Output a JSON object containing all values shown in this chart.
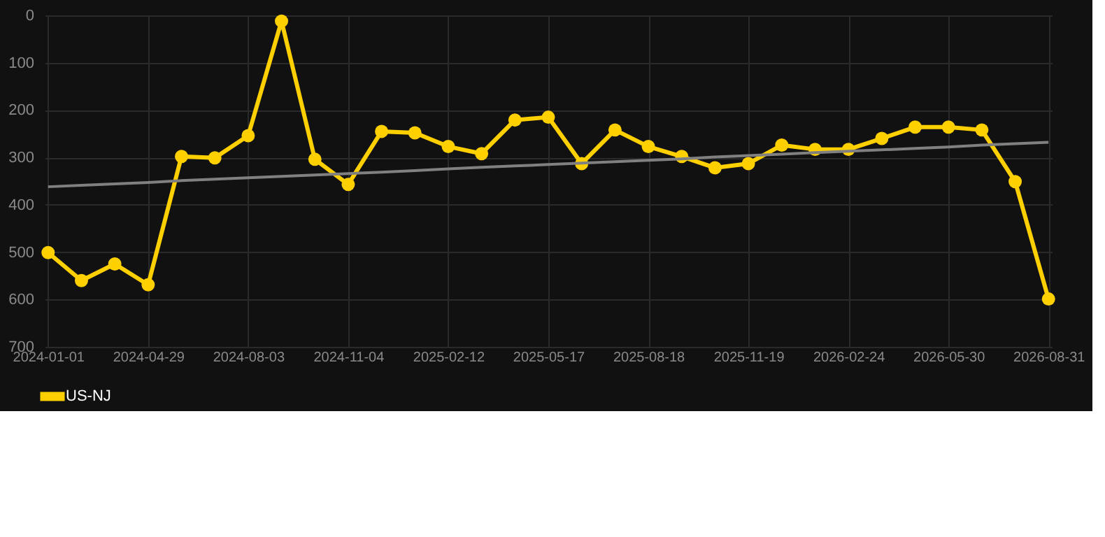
{
  "chart_data": {
    "type": "line",
    "categories": [
      "2024-01-01",
      null,
      null,
      "2024-04-29",
      null,
      null,
      "2024-08-03",
      null,
      null,
      "2024-11-04",
      null,
      null,
      "2025-02-12",
      null,
      null,
      "2025-05-17",
      null,
      null,
      "2025-08-18",
      null,
      null,
      "2025-11-19",
      null,
      null,
      "2026-02-24",
      null,
      null,
      "2026-05-30",
      null,
      null,
      "2026-08-31"
    ],
    "series": [
      {
        "name": "US-NJ",
        "color": "#ffd000",
        "marker": "circle",
        "values": [
          501,
          560,
          525,
          569,
          298,
          301,
          254,
          12,
          304,
          357,
          245,
          248,
          277,
          292,
          221,
          215,
          313,
          242,
          277,
          298,
          322,
          313,
          274,
          283,
          283,
          260,
          236,
          236,
          242,
          351,
          599
        ]
      },
      {
        "type": "line",
        "color": "#808080",
        "marker": "none",
        "values": [
          362,
          359,
          356,
          353,
          349,
          346,
          343,
          340,
          337,
          334,
          331,
          328,
          324,
          321,
          318,
          315,
          312,
          309,
          306,
          303,
          299,
          296,
          293,
          290,
          287,
          284,
          281,
          278,
          274,
          271,
          268
        ]
      }
    ],
    "ylim": [
      700,
      0
    ],
    "yticks": [
      0,
      100,
      200,
      300,
      400,
      500,
      600,
      700
    ],
    "grid": true,
    "legend": "bottom"
  }
}
